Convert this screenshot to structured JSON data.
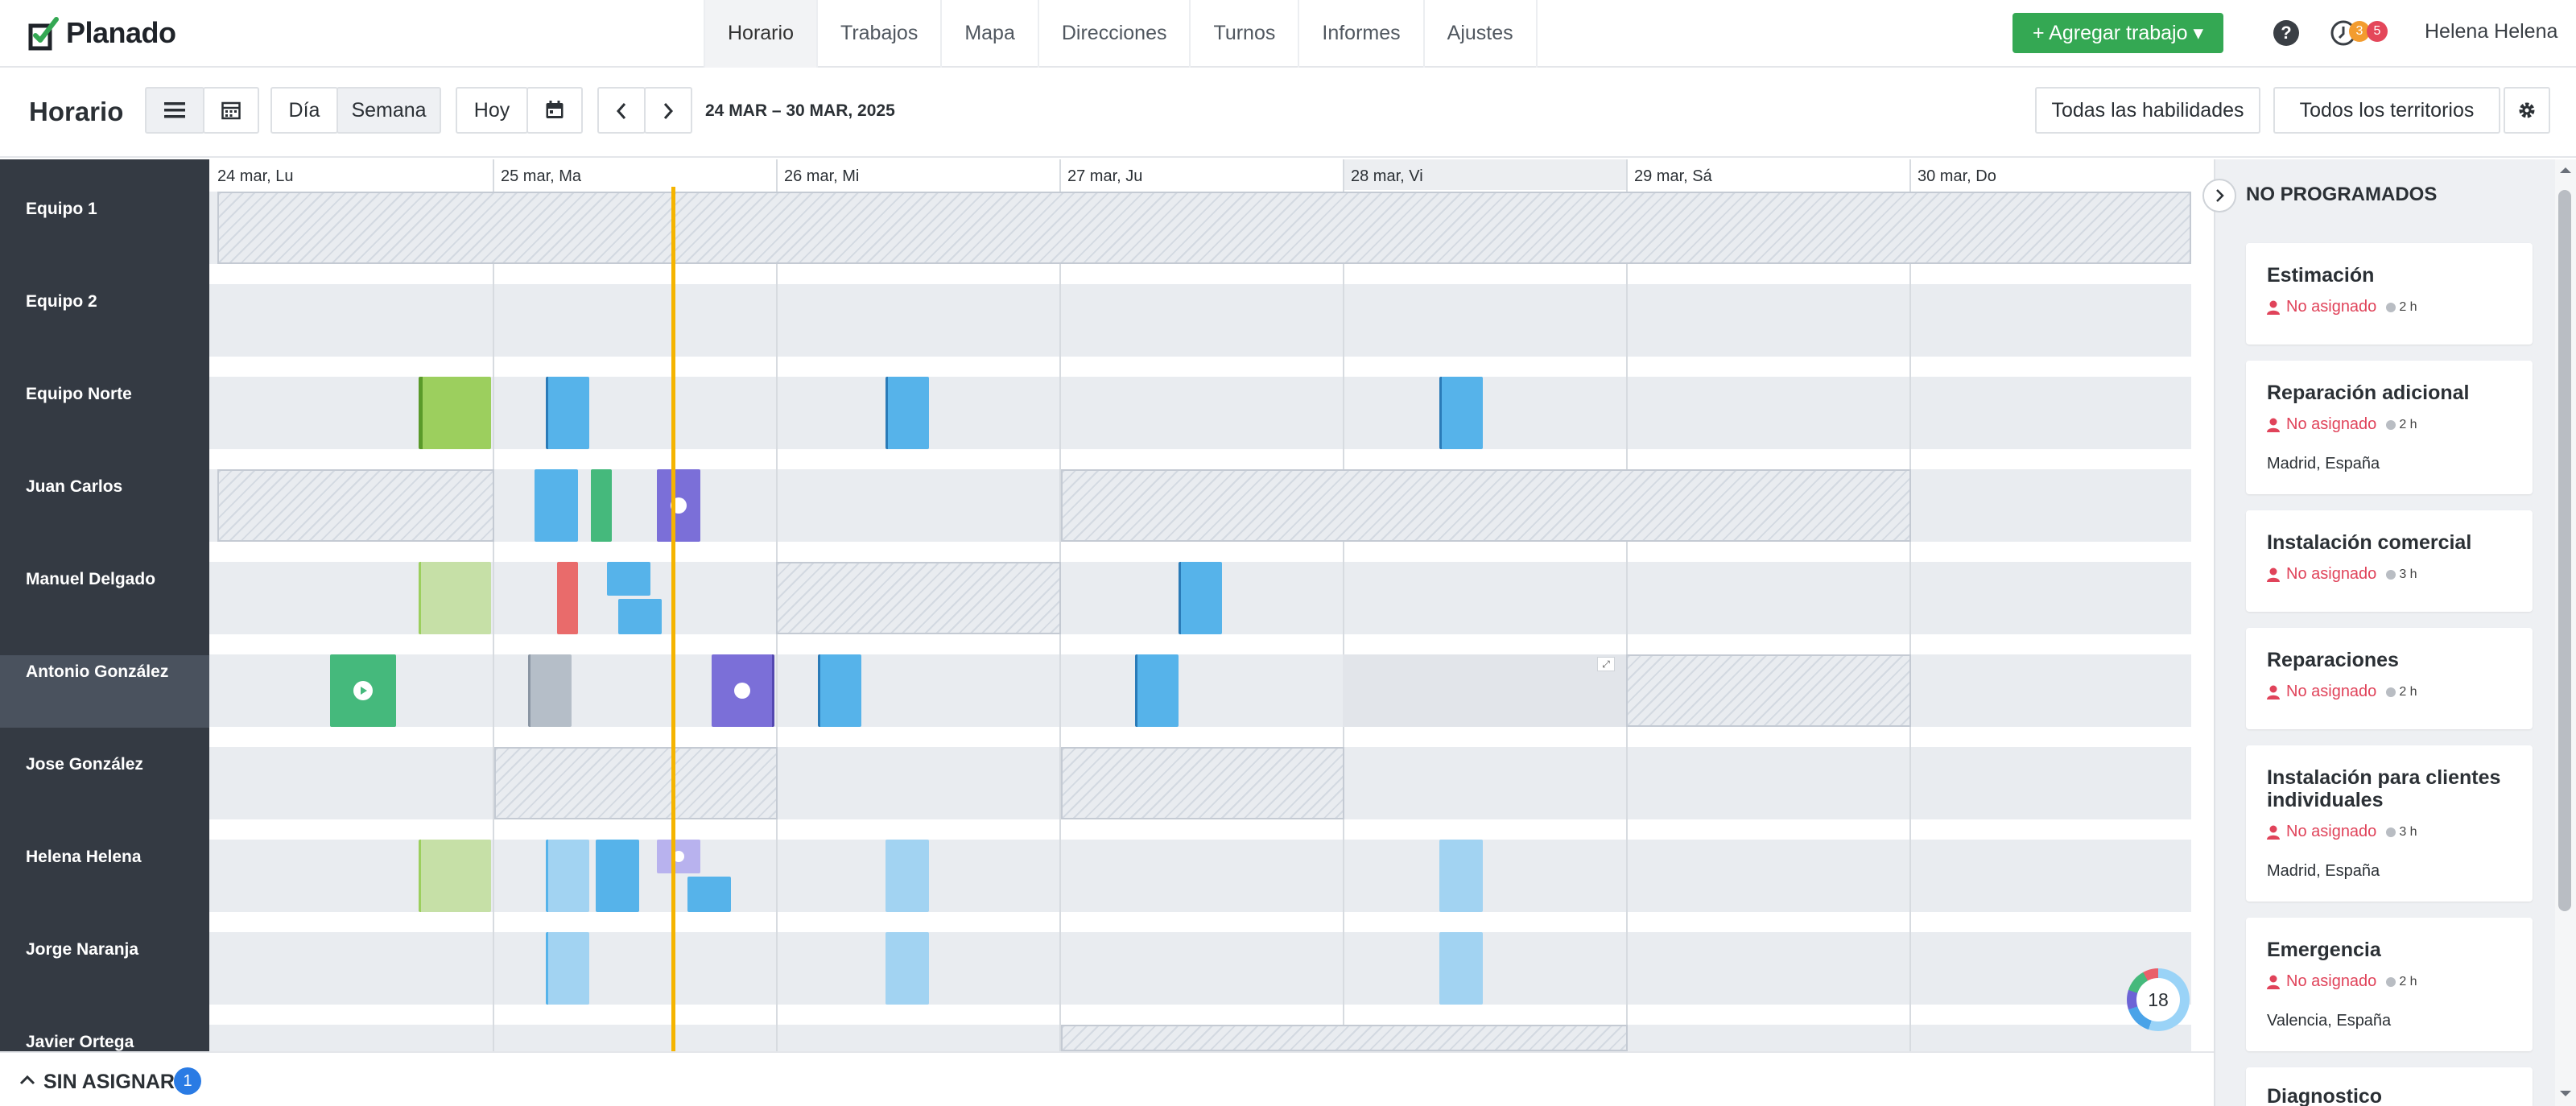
{
  "brand": {
    "name": "Planado"
  },
  "nav": {
    "items": [
      {
        "label": "Horario"
      },
      {
        "label": "Trabajos"
      },
      {
        "label": "Mapa"
      },
      {
        "label": "Direcciones"
      },
      {
        "label": "Turnos"
      },
      {
        "label": "Informes"
      },
      {
        "label": "Ajustes"
      }
    ],
    "add_job": "+ Agregar trabajo ▾",
    "help": "?",
    "notif_counts": [
      "3",
      "5"
    ],
    "user": "Helena Helena"
  },
  "toolbar": {
    "title": "Horario",
    "day": "Día",
    "week": "Semana",
    "today": "Hoy",
    "date_range": "24 MAR – 30 MAR, 2025",
    "skills": "Todas las habilidades",
    "territories": "Todos los territorios"
  },
  "schedule": {
    "days": [
      "24 mar, Lu",
      "25 mar, Ma",
      "26 mar, Mi",
      "27 mar, Ju",
      "28 mar, Vi",
      "29 mar, Sá",
      "30 mar, Do"
    ],
    "rows": [
      "Equipo 1",
      "Equipo 2",
      "Equipo Norte",
      "Juan Carlos",
      "Manuel Delgado",
      "Antonio González",
      "Jose González",
      "Helena Helena",
      "Jorge Naranja",
      "Javier Ortega"
    ],
    "event_colors": {
      "blue": "#56b3ea",
      "green": "#45b97c",
      "lime": "#9ccf5e",
      "purple": "#7b6fd8",
      "red": "#e96b6b",
      "gray": "#b5bec8"
    }
  },
  "unscheduled": {
    "title": "NO PROGRAMADOS",
    "unassigned": "No asignado",
    "cards": [
      {
        "title": "Estimación",
        "duration": "2 h",
        "location": ""
      },
      {
        "title": "Reparación adicional",
        "duration": "2 h",
        "location": "Madrid, España"
      },
      {
        "title": "Instalación comercial",
        "duration": "3 h",
        "location": ""
      },
      {
        "title": "Reparaciones",
        "duration": "2 h",
        "location": ""
      },
      {
        "title": "Instalación para clientes individuales",
        "duration": "3 h",
        "location": "Madrid, España"
      },
      {
        "title": "Emergencia",
        "duration": "2 h",
        "location": "Valencia, España"
      },
      {
        "title": "Diagnostico",
        "duration": "",
        "location": ""
      }
    ]
  },
  "bottom": {
    "label": "SIN ASIGNAR",
    "count": "1"
  },
  "donut": {
    "value": "18"
  }
}
